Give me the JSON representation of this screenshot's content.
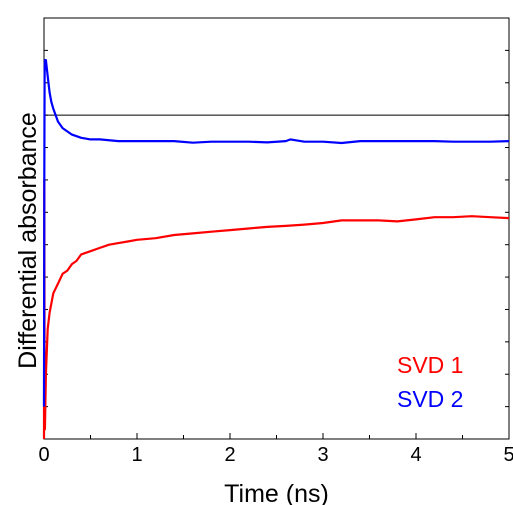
{
  "chart_data": {
    "type": "line",
    "title": "",
    "xlabel": "Time (ns)",
    "ylabel": "Differential absorbance",
    "xlim": [
      0,
      5
    ],
    "ylim": [
      -1,
      0.3
    ],
    "x_ticks": [
      0,
      1,
      2,
      3,
      4,
      5
    ],
    "x_tick_labels": [
      "0",
      "1",
      "2",
      "3",
      "4",
      "5"
    ],
    "y_tick_labels_shown": false,
    "grid": false,
    "zero_line": true,
    "legend_position": "bottom-right",
    "series": [
      {
        "name": "SVD 1",
        "color": "#ff0000",
        "x": [
          0,
          0.003,
          0.006,
          0.01,
          0.02,
          0.04,
          0.06,
          0.1,
          0.15,
          0.2,
          0.25,
          0.3,
          0.35,
          0.4,
          0.45,
          0.5,
          0.6,
          0.7,
          0.8,
          0.9,
          1.0,
          1.2,
          1.4,
          1.6,
          1.8,
          2.0,
          2.2,
          2.4,
          2.6,
          2.8,
          3.0,
          3.2,
          3.4,
          3.6,
          3.8,
          4.0,
          4.2,
          4.4,
          4.6,
          4.8,
          5.0
        ],
        "values": [
          -1.0,
          -0.2,
          -0.9,
          -0.97,
          -0.8,
          -0.66,
          -0.61,
          -0.55,
          -0.52,
          -0.49,
          -0.48,
          -0.46,
          -0.45,
          -0.43,
          -0.425,
          -0.42,
          -0.41,
          -0.4,
          -0.395,
          -0.39,
          -0.385,
          -0.38,
          -0.37,
          -0.365,
          -0.36,
          -0.355,
          -0.35,
          -0.345,
          -0.342,
          -0.338,
          -0.333,
          -0.325,
          -0.325,
          -0.325,
          -0.328,
          -0.322,
          -0.315,
          -0.315,
          -0.312,
          -0.315,
          -0.318
        ]
      },
      {
        "name": "SVD 2",
        "color": "#0000ff",
        "x": [
          0,
          0.003,
          0.006,
          0.01,
          0.02,
          0.04,
          0.06,
          0.08,
          0.1,
          0.15,
          0.2,
          0.3,
          0.4,
          0.5,
          0.6,
          0.8,
          1.0,
          1.2,
          1.4,
          1.6,
          1.8,
          2.0,
          2.2,
          2.4,
          2.6,
          2.65,
          2.8,
          3.0,
          3.2,
          3.4,
          3.6,
          3.8,
          4.0,
          4.2,
          4.4,
          4.6,
          4.8,
          5.0
        ],
        "values": [
          -0.9,
          -0.2,
          0.12,
          0.17,
          0.17,
          0.12,
          0.07,
          0.04,
          0.02,
          -0.02,
          -0.04,
          -0.06,
          -0.07,
          -0.075,
          -0.075,
          -0.08,
          -0.08,
          -0.08,
          -0.08,
          -0.085,
          -0.082,
          -0.082,
          -0.082,
          -0.084,
          -0.08,
          -0.075,
          -0.082,
          -0.082,
          -0.086,
          -0.08,
          -0.08,
          -0.08,
          -0.08,
          -0.08,
          -0.082,
          -0.082,
          -0.082,
          -0.08
        ]
      }
    ]
  }
}
